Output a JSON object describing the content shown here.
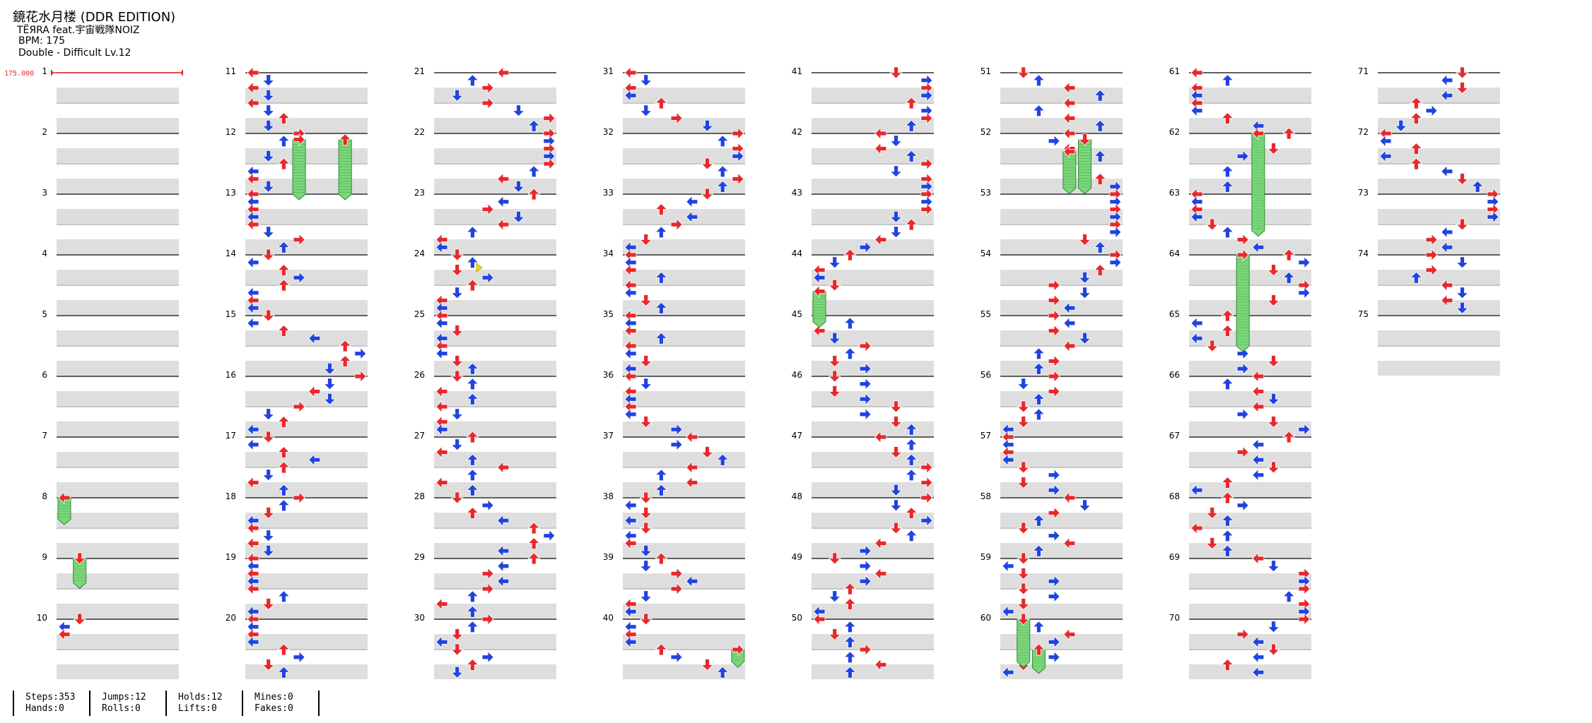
{
  "song": {
    "title": "鏡花水月楼 (DDR EDITION)",
    "artist": "TËЯRA feat.宇宙戦隊NOIZ",
    "bpm_label": "BPM: 175",
    "difficulty_label": "Double - Difficult Lv.12"
  },
  "bpm_marker": {
    "text": "175.000",
    "color": "#e8282b"
  },
  "colors": {
    "quarter_arrow": "#e8282b",
    "eighth_arrow": "#1f44e0",
    "hold": "#7cd67c",
    "hold_edge": "#2b8a2b",
    "mine": "#f3d61f",
    "band": "#dedede"
  },
  "measures": [
    "1",
    "2",
    "3",
    "4",
    "5",
    "6",
    "7",
    "8",
    "9",
    "10",
    "11",
    "12",
    "13",
    "14",
    "15",
    "16",
    "17",
    "18",
    "19",
    "20",
    "21",
    "22",
    "23",
    "24",
    "25",
    "26",
    "27",
    "28",
    "29",
    "30",
    "31",
    "32",
    "33",
    "34",
    "35",
    "36",
    "37",
    "38",
    "39",
    "40",
    "41",
    "42",
    "43",
    "44",
    "45",
    "46",
    "47",
    "48",
    "49",
    "50",
    "51",
    "52",
    "53",
    "54",
    "55",
    "56",
    "57",
    "58",
    "59",
    "60",
    "61",
    "62",
    "63",
    "64",
    "65",
    "66",
    "67",
    "68",
    "69",
    "70",
    "71",
    "72",
    "73",
    "74",
    "75"
  ],
  "stats": [
    {
      "top": "Steps:353",
      "bottom": "Hands:0"
    },
    {
      "top": "Jumps:12",
      "bottom": "Rolls:0"
    },
    {
      "top": "Holds:12",
      "bottom": "Lifts:0"
    },
    {
      "top": "Mines:0",
      "bottom": "Fakes:0"
    }
  ]
}
